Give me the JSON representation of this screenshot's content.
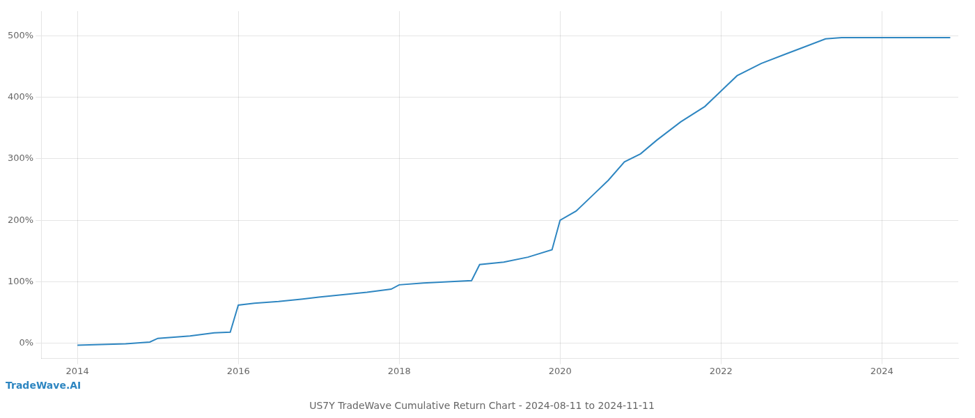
{
  "chart_data": {
    "type": "line",
    "title": "US7Y TradeWave Cumulative Return Chart - 2024-08-11 to 2024-11-11",
    "watermark": "TradeWave.AI",
    "color": "#2e86c1",
    "x": [
      2014.0,
      2014.3,
      2014.6,
      2014.9,
      2015.0,
      2015.2,
      2015.4,
      2015.7,
      2015.9,
      2016.0,
      2016.2,
      2016.5,
      2016.8,
      2017.0,
      2017.3,
      2017.6,
      2017.9,
      2018.0,
      2018.3,
      2018.6,
      2018.9,
      2019.0,
      2019.3,
      2019.6,
      2019.9,
      2020.0,
      2020.2,
      2020.4,
      2020.6,
      2020.8,
      2021.0,
      2021.2,
      2021.5,
      2021.8,
      2022.0,
      2022.2,
      2022.5,
      2022.8,
      2023.0,
      2023.3,
      2023.5,
      2024.0,
      2024.5,
      2024.85
    ],
    "values": [
      -3,
      -2,
      -1,
      2,
      8,
      10,
      12,
      17,
      18,
      62,
      65,
      68,
      72,
      75,
      79,
      83,
      88,
      95,
      98,
      100,
      102,
      128,
      132,
      140,
      152,
      200,
      215,
      240,
      265,
      295,
      308,
      330,
      360,
      385,
      410,
      435,
      455,
      470,
      480,
      495,
      497,
      497,
      497,
      497
    ],
    "xlim": [
      2013.55,
      2024.95
    ],
    "ylim": [
      -25,
      540
    ],
    "xticks": [
      2014,
      2016,
      2018,
      2020,
      2022,
      2024
    ],
    "yticks": [
      {
        "value": 0,
        "label": "0%"
      },
      {
        "value": 100,
        "label": "100%"
      },
      {
        "value": 200,
        "label": "200%"
      },
      {
        "value": 300,
        "label": "300%"
      },
      {
        "value": 400,
        "label": "400%"
      },
      {
        "value": 500,
        "label": "500%"
      }
    ],
    "grid": true
  }
}
